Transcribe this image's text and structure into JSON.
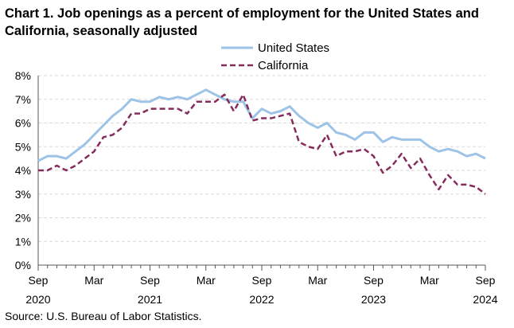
{
  "chart_data": {
    "type": "line",
    "title": "Chart 1. Job openings as a percent of employment for the United States and California, seasonally adjusted",
    "source": "Source: U.S. Bureau of Labor Statistics.",
    "xlabel": "",
    "ylabel": "",
    "ylim": [
      0,
      8
    ],
    "y_ticks": [
      "0%",
      "1%",
      "2%",
      "3%",
      "4%",
      "5%",
      "6%",
      "7%",
      "8%"
    ],
    "grid": true,
    "legend_position": "top-right",
    "x_tick_labels": [
      {
        "index": 0,
        "month": "Sep",
        "year": "2020"
      },
      {
        "index": 6,
        "month": "Mar",
        "year": ""
      },
      {
        "index": 12,
        "month": "Sep",
        "year": "2021"
      },
      {
        "index": 18,
        "month": "Mar",
        "year": ""
      },
      {
        "index": 24,
        "month": "Sep",
        "year": "2022"
      },
      {
        "index": 30,
        "month": "Mar",
        "year": ""
      },
      {
        "index": 36,
        "month": "Sep",
        "year": "2023"
      },
      {
        "index": 42,
        "month": "Mar",
        "year": ""
      },
      {
        "index": 48,
        "month": "Sep",
        "year": "2024"
      }
    ],
    "x_range": [
      "Sep 2020",
      "Sep 2024"
    ],
    "series": [
      {
        "name": "United States",
        "color": "#9dc3e6",
        "dash": "solid",
        "values": [
          4.4,
          4.6,
          4.6,
          4.5,
          4.8,
          5.1,
          5.5,
          5.9,
          6.3,
          6.6,
          7.0,
          6.9,
          6.9,
          7.1,
          7.0,
          7.1,
          7.0,
          7.2,
          7.4,
          7.2,
          7.0,
          6.9,
          6.9,
          6.2,
          6.6,
          6.4,
          6.5,
          6.7,
          6.3,
          6.0,
          5.8,
          6.0,
          5.6,
          5.5,
          5.3,
          5.6,
          5.6,
          5.2,
          5.4,
          5.3,
          5.3,
          5.3,
          5.0,
          4.8,
          4.9,
          4.8,
          4.6,
          4.7,
          4.5
        ]
      },
      {
        "name": "California",
        "color": "#862c5c",
        "dash": "dashed",
        "values": [
          4.0,
          4.0,
          4.2,
          4.0,
          4.2,
          4.5,
          4.8,
          5.4,
          5.5,
          5.8,
          6.4,
          6.4,
          6.6,
          6.6,
          6.6,
          6.6,
          6.4,
          6.9,
          6.9,
          6.9,
          7.2,
          6.5,
          7.2,
          6.1,
          6.2,
          6.2,
          6.3,
          6.4,
          5.2,
          5.0,
          4.9,
          5.5,
          4.6,
          4.8,
          4.8,
          4.9,
          4.6,
          3.9,
          4.2,
          4.7,
          4.1,
          4.5,
          3.8,
          3.2,
          3.8,
          3.4,
          3.4,
          3.3,
          3.0
        ]
      }
    ]
  }
}
